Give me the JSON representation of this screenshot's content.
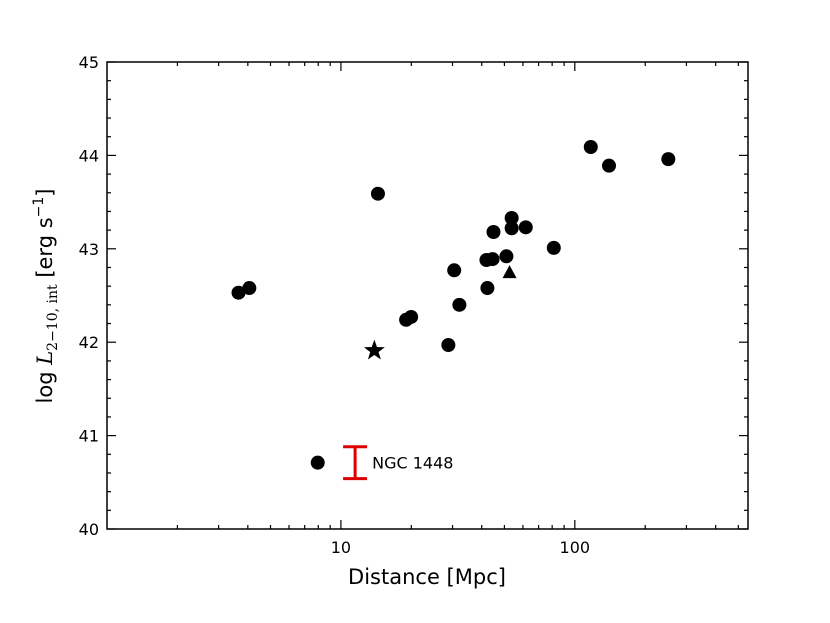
{
  "chart_data": {
    "type": "scatter",
    "x_label": "Distance [Mpc]",
    "y_label": [
      "log ",
      "L",
      "2−10, int",
      " [erg s",
      "−1",
      "]"
    ],
    "xscale": "log",
    "xlim": [
      1,
      550
    ],
    "ylim": [
      40,
      45
    ],
    "xticks": [
      10,
      100
    ],
    "yticks": [
      40,
      41,
      42,
      43,
      44,
      45
    ],
    "minor_ticks": true,
    "series": [
      {
        "marker": "circle",
        "color": "#000000",
        "x": [
          3.65,
          4.06,
          7.96,
          14.4,
          19.0,
          19.96,
          28.8,
          30.5,
          32.1,
          41.9,
          42.3,
          44.5,
          44.9,
          51.0,
          53.7,
          53.7,
          61.7,
          81.3,
          117,
          140,
          251
        ],
        "values": [
          42.53,
          42.58,
          40.71,
          43.59,
          42.24,
          42.27,
          41.97,
          42.77,
          42.4,
          42.88,
          42.58,
          42.89,
          43.18,
          42.92,
          43.33,
          43.22,
          43.23,
          43.01,
          44.09,
          43.89,
          43.96
        ]
      },
      {
        "marker": "star",
        "color": "#000000",
        "x": [
          13.9
        ],
        "values": [
          41.91
        ]
      },
      {
        "marker": "triangle",
        "color": "#000000",
        "x": [
          52.6
        ],
        "values": [
          42.75
        ]
      },
      {
        "marker": "errorbar",
        "color": "#dd0000",
        "x": [
          11.5
        ],
        "values": [
          40.71
        ],
        "errors": [
          0.17
        ],
        "labels": [
          "NGC 1448"
        ]
      }
    ]
  }
}
